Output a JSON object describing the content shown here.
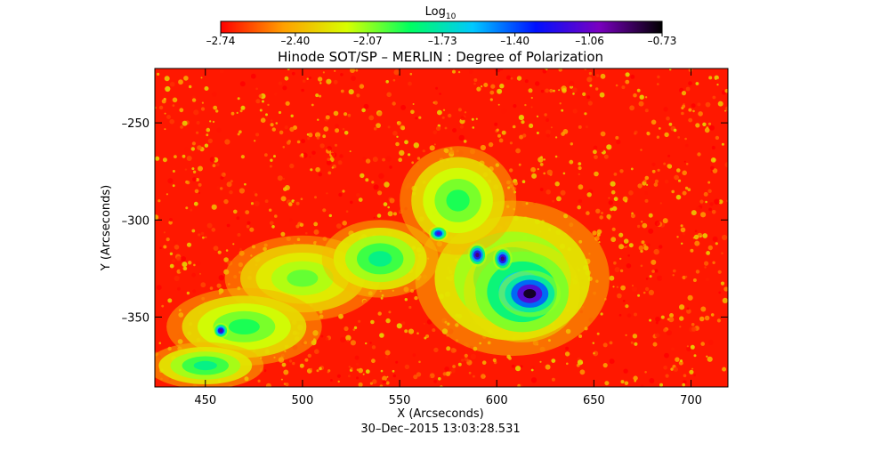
{
  "chart_data": {
    "type": "heatmap",
    "title": "Hinode SOT/SP – MERLIN : Degree of Polarization",
    "xlabel": "X (Arcseconds)",
    "ylabel": "Y (Arcseconds)",
    "timestamp": "30–Dec–2015 13:03:28.531",
    "xlim": [
      424,
      719
    ],
    "ylim": [
      -386,
      -222
    ],
    "xticks": [
      450,
      500,
      550,
      600,
      650,
      700
    ],
    "yticks": [
      -250,
      -300,
      -350
    ],
    "xtick_labels": [
      "450",
      "500",
      "550",
      "600",
      "650",
      "700"
    ],
    "ytick_labels": [
      "–250",
      "–300",
      "–350"
    ],
    "colorbar": {
      "label_base": "Log",
      "label_sub": "10",
      "min": -2.74,
      "max": -0.73,
      "ticks": [
        -2.74,
        -2.4,
        -2.07,
        -1.73,
        -1.4,
        -1.06,
        -0.73
      ],
      "tick_labels": [
        "–2.74",
        "–2.40",
        "–2.07",
        "–1.73",
        "–1.40",
        "–1.06",
        "–0.73"
      ],
      "colors": [
        "#ff0000",
        "#ffa000",
        "#d8ff00",
        "#00ff60",
        "#00c8ff",
        "#0010ff",
        "#7a00c0",
        "#000000"
      ]
    },
    "background_level": -2.6,
    "features": [
      {
        "name": "sunspot umbra",
        "x": 617,
        "y": -338,
        "rx": 16,
        "ry": 12,
        "level": -0.76
      },
      {
        "name": "sunspot penumbra",
        "x": 613,
        "y": -337,
        "rx": 30,
        "ry": 26,
        "level": -1.38
      },
      {
        "name": "plage",
        "x": 608,
        "y": -330,
        "rx": 50,
        "ry": 40,
        "level": -1.8
      },
      {
        "name": "pore",
        "x": 590,
        "y": -318,
        "rx": 5,
        "ry": 6,
        "level": -0.9
      },
      {
        "name": "pore",
        "x": 603,
        "y": -320,
        "rx": 5,
        "ry": 6,
        "level": -0.9
      },
      {
        "name": "pore",
        "x": 570,
        "y": -307,
        "rx": 5,
        "ry": 4,
        "level": -1.1
      },
      {
        "name": "pore",
        "x": 458,
        "y": -357,
        "rx": 4,
        "ry": 4,
        "level": -0.95
      },
      {
        "name": "network",
        "x": 580,
        "y": -290,
        "rx": 30,
        "ry": 28,
        "level": -1.9
      },
      {
        "name": "network",
        "x": 540,
        "y": -320,
        "rx": 30,
        "ry": 20,
        "level": -1.8
      },
      {
        "name": "network",
        "x": 470,
        "y": -355,
        "rx": 40,
        "ry": 20,
        "level": -1.9
      },
      {
        "name": "network",
        "x": 500,
        "y": -330,
        "rx": 40,
        "ry": 22,
        "level": -2.0
      },
      {
        "name": "network",
        "x": 450,
        "y": -375,
        "rx": 30,
        "ry": 12,
        "level": -1.8
      }
    ]
  }
}
